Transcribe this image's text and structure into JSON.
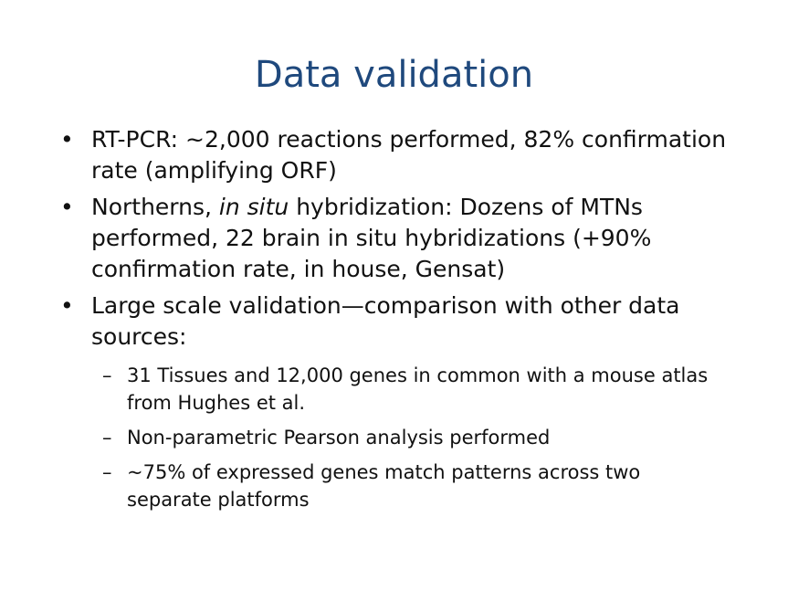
{
  "slide": {
    "title": "Data validation",
    "bullets": [
      {
        "marker": "•",
        "text": "RT-PCR:  ~2,000 reactions performed, 82% confirmation rate (amplifying ORF)"
      },
      {
        "marker": "•",
        "text_before": "Northerns, ",
        "text_italic": "in situ",
        "text_after": " hybridization:  Dozens of MTNs performed, 22 brain in situ hybridizations (+90% confirmation rate, in house, Gensat)"
      },
      {
        "marker": "•",
        "text": "Large scale validation—comparison with other data sources:",
        "sub_bullets": [
          {
            "marker": "–",
            "text": "31 Tissues and 12,000 genes in common with a mouse atlas from Hughes et al."
          },
          {
            "marker": "–",
            "text": "Non-parametric Pearson analysis performed"
          },
          {
            "marker": "–",
            "text": "~75% of expressed genes match patterns across two separate platforms"
          }
        ]
      }
    ]
  }
}
